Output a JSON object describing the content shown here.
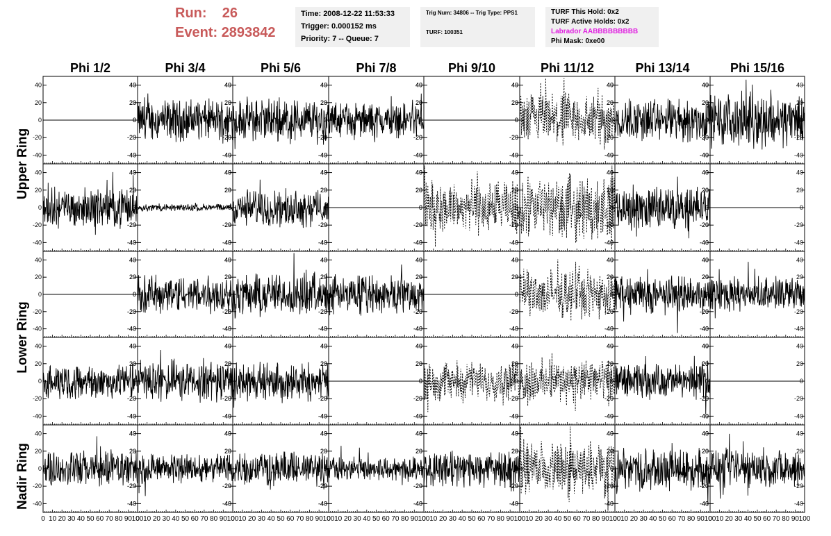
{
  "header": {
    "run_label": "Run:",
    "run_value": "26",
    "event_label": "Event:",
    "event_value": "2893842",
    "time": "Time: 2008-12-22 11:53:33",
    "trigger": "Trigger: 0.000152 ms",
    "priority": "Priority: 7 -- Queue: 7",
    "trig_num": "Trig Num: 34806 -- Trig Type: PPS1",
    "turf_id": "TURF: 100351",
    "turf_hold": "TURF This Hold: 0x2",
    "turf_active": "TURF Active Holds: 0x2",
    "labrador": "Labrador AABBBBBBBBB",
    "phi_mask": "Phi Mask: 0xe00"
  },
  "colors": {
    "run_text": "#c85a5a",
    "labrador_text": "#e020e0",
    "info_bg": "#f0f0f0",
    "trace": "#000000"
  },
  "chart_data": {
    "type": "line",
    "columns": [
      "Phi 1/2",
      "Phi 3/4",
      "Phi 5/6",
      "Phi 7/8",
      "Phi 9/10",
      "Phi 11/12",
      "Phi 13/14",
      "Phi 15/16"
    ],
    "rows": [
      "Upper Ring",
      "Upper Ring",
      "Lower Ring",
      "Lower Ring",
      "Nadir Ring"
    ],
    "row_labels": [
      "Upper Ring",
      "Lower Ring",
      "Nadir Ring"
    ],
    "xlim": [
      0,
      100
    ],
    "ylim": [
      -50,
      50
    ],
    "yticks": [
      -40,
      -20,
      0,
      20,
      40
    ],
    "xtick_labels": [
      "0",
      "10",
      "20",
      "30",
      "40",
      "50",
      "60",
      "70",
      "80",
      "90",
      "100"
    ],
    "amplitude": [
      [
        0,
        17,
        18,
        14,
        0,
        22,
        18,
        22
      ],
      [
        16,
        3,
        15,
        0,
        22,
        26,
        18,
        0
      ],
      [
        0,
        16,
        18,
        16,
        0,
        20,
        16,
        14
      ],
      [
        14,
        17,
        16,
        0,
        16,
        18,
        14,
        0
      ],
      [
        15,
        12,
        14,
        10,
        15,
        22,
        17,
        16
      ]
    ],
    "style": [
      [
        "flat",
        "solid",
        "solid",
        "solid",
        "flat",
        "dashed",
        "solid",
        "solid"
      ],
      [
        "solid",
        "solid",
        "solid",
        "flat",
        "dashed",
        "dashed",
        "solid",
        "flat"
      ],
      [
        "flat",
        "solid",
        "solid",
        "solid",
        "flat",
        "dashed",
        "solid",
        "solid"
      ],
      [
        "solid",
        "solid",
        "solid",
        "flat",
        "dashed",
        "dashed",
        "solid",
        "flat"
      ],
      [
        "solid",
        "solid",
        "solid",
        "solid",
        "solid",
        "dashed",
        "solid",
        "solid"
      ]
    ]
  }
}
